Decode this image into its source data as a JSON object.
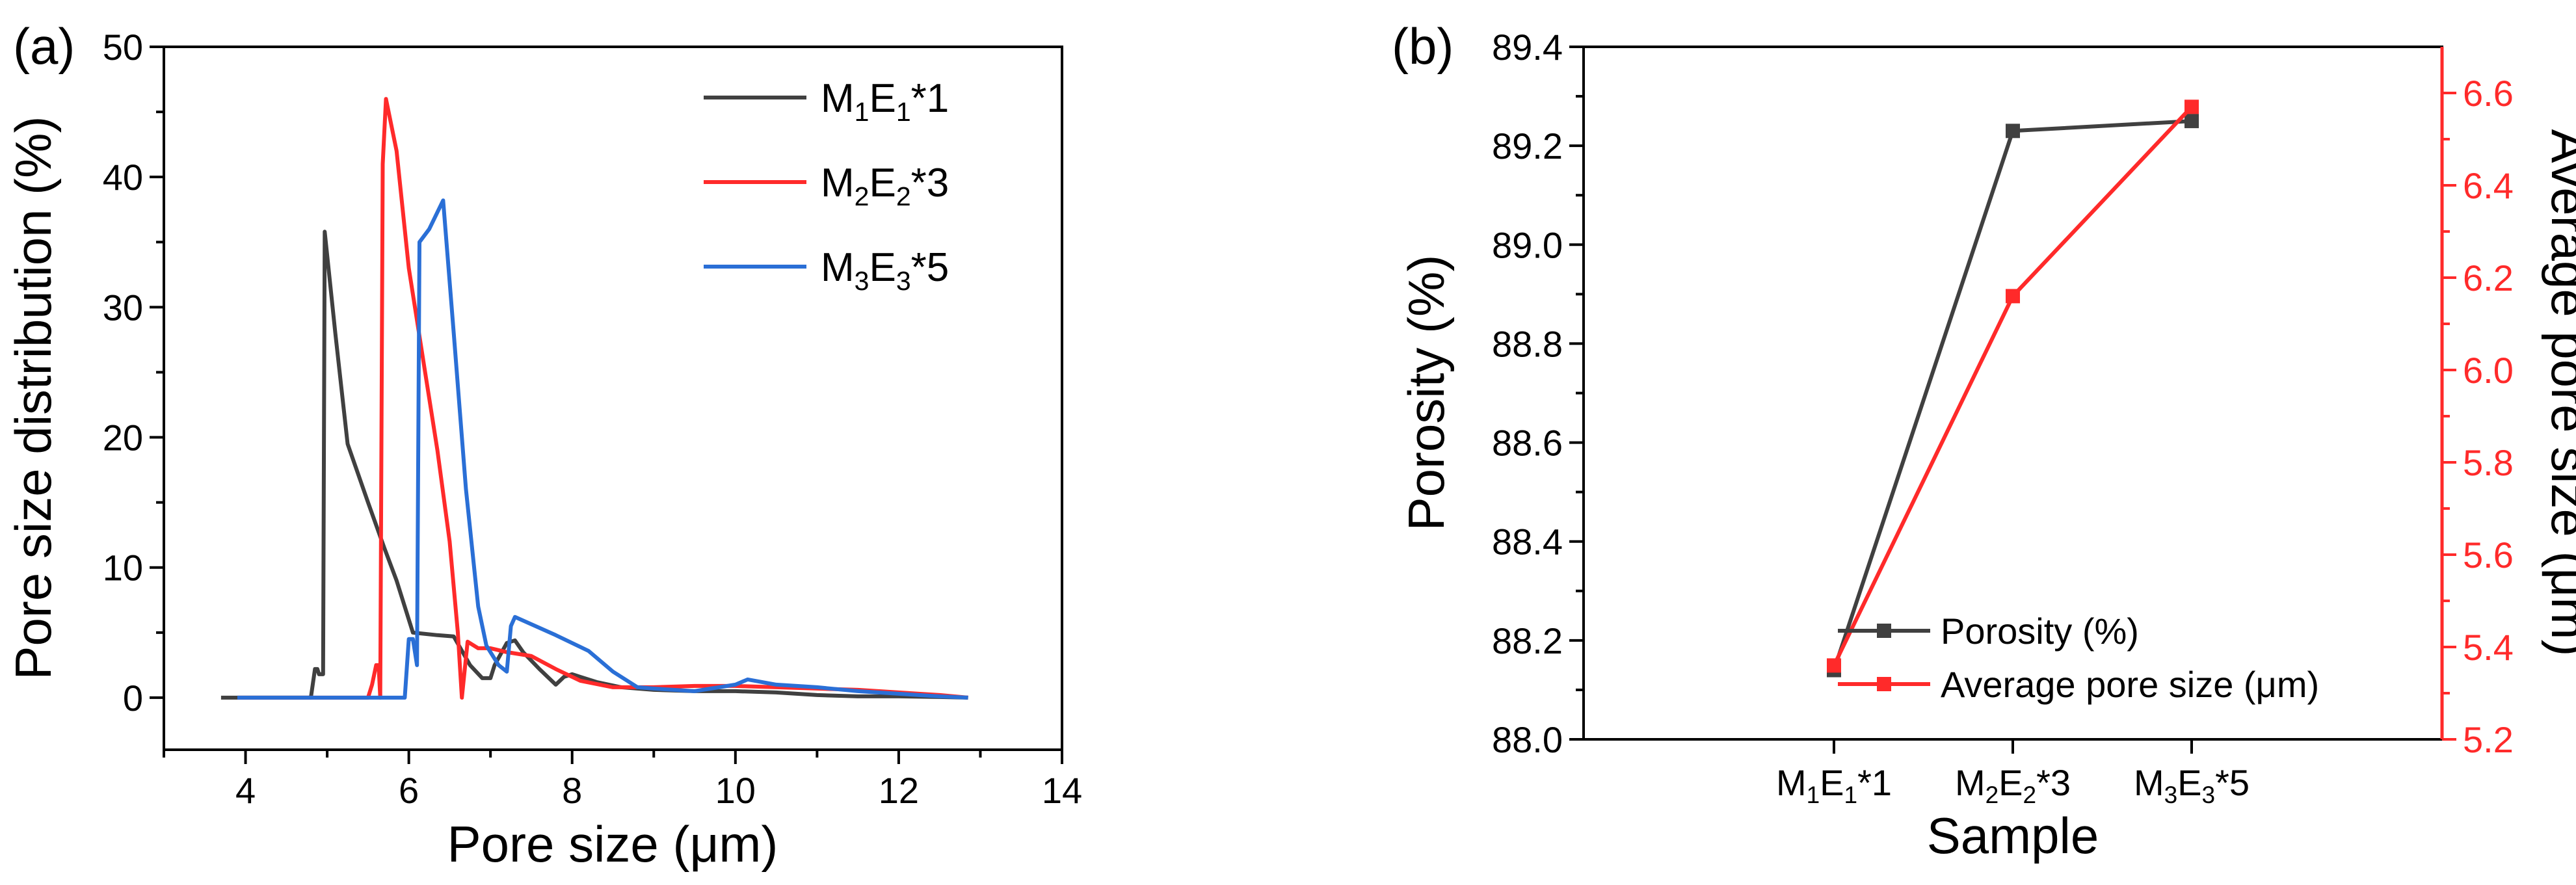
{
  "panels": {
    "a": {
      "tag": "(a)"
    },
    "b": {
      "tag": "(b)"
    }
  },
  "chart_data": [
    {
      "type": "line",
      "xlabel": "Pore size (μm)",
      "ylabel": "Pore size distribution (%)",
      "xlim": [
        3,
        14
      ],
      "ylim": [
        -4,
        50
      ],
      "xticks": [
        4,
        6,
        8,
        10,
        12,
        14
      ],
      "yticks": [
        0,
        10,
        20,
        30,
        40,
        50
      ],
      "grid": false,
      "legend_position": "top-right",
      "series": [
        {
          "name": "M1E1*1",
          "label_base": [
            "M",
            "E",
            "*1"
          ],
          "label_sub": [
            "1",
            "1"
          ],
          "color": "#404040",
          "points": [
            [
              3.7,
              0
            ],
            [
              4.8,
              0
            ],
            [
              4.85,
              2.2
            ],
            [
              4.88,
              2.2
            ],
            [
              4.9,
              1.8
            ],
            [
              4.95,
              1.8
            ],
            [
              4.97,
              35.8
            ],
            [
              5.1,
              28
            ],
            [
              5.25,
              19.5
            ],
            [
              5.5,
              15
            ],
            [
              5.7,
              11.5
            ],
            [
              5.85,
              9
            ],
            [
              6.05,
              5
            ],
            [
              6.35,
              4.8
            ],
            [
              6.55,
              4.7
            ],
            [
              6.75,
              2.5
            ],
            [
              6.9,
              1.5
            ],
            [
              7.0,
              1.5
            ],
            [
              7.05,
              2.5
            ],
            [
              7.2,
              4.2
            ],
            [
              7.3,
              4.4
            ],
            [
              7.4,
              3.5
            ],
            [
              7.6,
              2.2
            ],
            [
              7.8,
              1
            ],
            [
              7.9,
              1.6
            ],
            [
              8.0,
              1.8
            ],
            [
              8.3,
              1.2
            ],
            [
              8.6,
              0.8
            ],
            [
              9.0,
              0.6
            ],
            [
              9.5,
              0.5
            ],
            [
              10.0,
              0.5
            ],
            [
              10.5,
              0.4
            ],
            [
              11.0,
              0.2
            ],
            [
              11.5,
              0.1
            ],
            [
              12.0,
              0.1
            ],
            [
              12.5,
              0.05
            ],
            [
              12.85,
              0
            ]
          ]
        },
        {
          "name": "M2E2*3",
          "label_base": [
            "M",
            "E",
            "*3"
          ],
          "label_sub": [
            "2",
            "2"
          ],
          "color": "#ff2a2a",
          "points": [
            [
              3.9,
              0
            ],
            [
              5.5,
              0
            ],
            [
              5.55,
              1
            ],
            [
              5.6,
              2.5
            ],
            [
              5.63,
              2.5
            ],
            [
              5.65,
              0
            ],
            [
              5.68,
              41
            ],
            [
              5.72,
              46
            ],
            [
              5.85,
              42
            ],
            [
              6.0,
              33
            ],
            [
              6.2,
              25
            ],
            [
              6.35,
              19
            ],
            [
              6.5,
              12
            ],
            [
              6.6,
              5
            ],
            [
              6.65,
              0
            ],
            [
              6.72,
              4.3
            ],
            [
              6.85,
              3.8
            ],
            [
              7.0,
              3.8
            ],
            [
              7.2,
              3.5
            ],
            [
              7.5,
              3.2
            ],
            [
              7.8,
              2.2
            ],
            [
              8.1,
              1.3
            ],
            [
              8.5,
              0.8
            ],
            [
              9.0,
              0.8
            ],
            [
              9.5,
              0.9
            ],
            [
              10.0,
              0.9
            ],
            [
              10.5,
              0.8
            ],
            [
              11.0,
              0.7
            ],
            [
              11.5,
              0.6
            ],
            [
              12.0,
              0.4
            ],
            [
              12.5,
              0.2
            ],
            [
              12.85,
              0
            ]
          ]
        },
        {
          "name": "M3E3*5",
          "label_base": [
            "M",
            "E",
            "*5"
          ],
          "label_sub": [
            "3",
            "3"
          ],
          "color": "#2a6fd6",
          "points": [
            [
              3.9,
              0
            ],
            [
              5.95,
              0
            ],
            [
              6.0,
              4.5
            ],
            [
              6.05,
              4.5
            ],
            [
              6.1,
              2.5
            ],
            [
              6.13,
              35
            ],
            [
              6.25,
              36
            ],
            [
              6.42,
              38.2
            ],
            [
              6.55,
              28
            ],
            [
              6.7,
              16
            ],
            [
              6.85,
              7
            ],
            [
              6.95,
              4
            ],
            [
              7.1,
              2.5
            ],
            [
              7.2,
              2
            ],
            [
              7.25,
              5.5
            ],
            [
              7.3,
              6.2
            ],
            [
              7.8,
              4.8
            ],
            [
              8.2,
              3.6
            ],
            [
              8.5,
              2
            ],
            [
              8.8,
              0.8
            ],
            [
              9.0,
              0.7
            ],
            [
              9.5,
              0.5
            ],
            [
              10.0,
              1
            ],
            [
              10.15,
              1.4
            ],
            [
              10.5,
              1
            ],
            [
              11.0,
              0.8
            ],
            [
              11.5,
              0.5
            ],
            [
              12.0,
              0.3
            ],
            [
              12.5,
              0.1
            ],
            [
              12.85,
              0
            ]
          ]
        }
      ]
    },
    {
      "type": "line",
      "xlabel": "Sample",
      "ylabel": "Porosity (%)",
      "y2label": "Average pore size (μm)",
      "categories": [
        "M1E1*1",
        "M2E2*3",
        "M3E3*5"
      ],
      "category_base": [
        [
          "M",
          "E",
          "*1"
        ],
        [
          "M",
          "E",
          "*3"
        ],
        [
          "M",
          "E",
          "*5"
        ]
      ],
      "category_sub": [
        [
          "1",
          "1"
        ],
        [
          "2",
          "2"
        ],
        [
          "3",
          "3"
        ]
      ],
      "ylim": [
        88.0,
        89.4
      ],
      "y2lim": [
        5.2,
        6.7
      ],
      "yticks": [
        88.0,
        88.2,
        88.4,
        88.6,
        88.8,
        89.0,
        89.2,
        89.4
      ],
      "y2ticks": [
        5.2,
        5.4,
        5.6,
        5.8,
        6.0,
        6.2,
        6.4,
        6.6
      ],
      "grid": false,
      "legend_position": "bottom-right",
      "series": [
        {
          "name": "Porosity (%)",
          "axis": "left",
          "color": "#404040",
          "values": [
            88.14,
            89.23,
            89.25
          ]
        },
        {
          "name": "Average pore size (μm)",
          "axis": "right",
          "color": "#ff2a2a",
          "values": [
            5.36,
            6.16,
            6.57
          ]
        }
      ]
    }
  ]
}
